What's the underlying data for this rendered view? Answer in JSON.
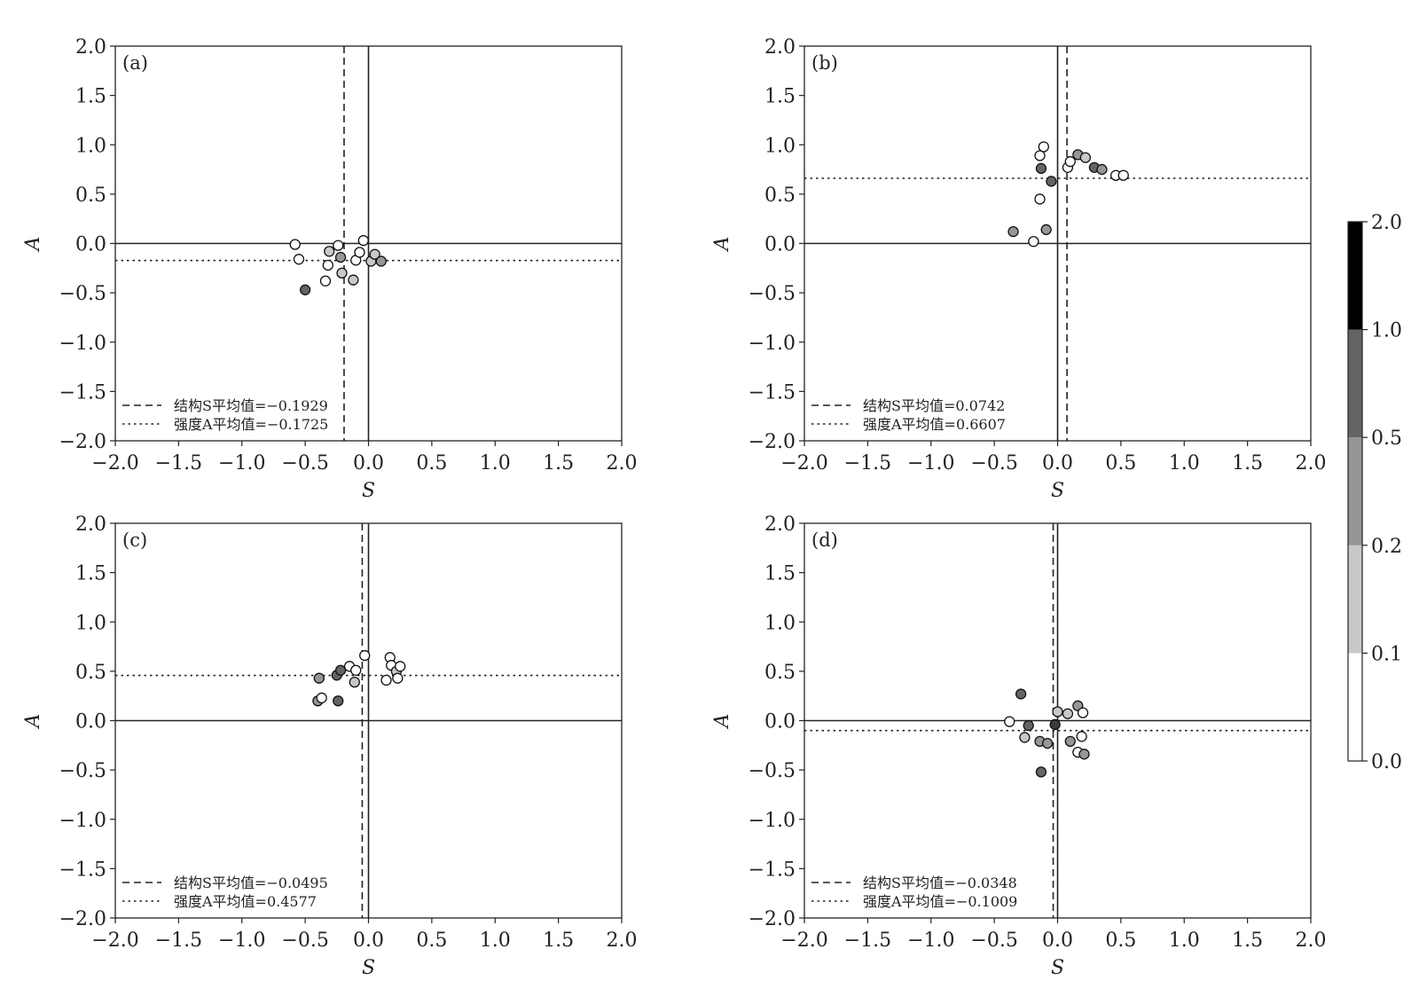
{
  "chart_data": [
    {
      "type": "scatter",
      "tag": "(a)",
      "xlabel": "S",
      "ylabel": "A",
      "xlim": [
        -2.0,
        2.0
      ],
      "ylim": [
        -2.0,
        2.0
      ],
      "xticks": [
        "−2.0",
        "−1.5",
        "−1.0",
        "−0.5",
        "0.0",
        "0.5",
        "1.0",
        "1.5",
        "2.0"
      ],
      "yticks": [
        "−2.0",
        "−1.5",
        "−1.0",
        "−0.5",
        "0.0",
        "0.5",
        "1.0",
        "1.5",
        "2.0"
      ],
      "mean_S": -0.1929,
      "mean_A": -0.1725,
      "legend": [
        "结构S平均值=−0.1929",
        "强度A平均值=−0.1725"
      ],
      "legend_position": "lower-left",
      "points": [
        {
          "s": -0.58,
          "a": -0.01,
          "v": 0.05
        },
        {
          "s": -0.55,
          "a": -0.16,
          "v": 0.05
        },
        {
          "s": -0.5,
          "a": -0.47,
          "v": 0.7
        },
        {
          "s": -0.34,
          "a": -0.38,
          "v": 0.05
        },
        {
          "s": -0.32,
          "a": -0.22,
          "v": 0.05
        },
        {
          "s": -0.31,
          "a": -0.08,
          "v": 0.15
        },
        {
          "s": -0.24,
          "a": -0.02,
          "v": 0.05
        },
        {
          "s": -0.22,
          "a": -0.14,
          "v": 0.4
        },
        {
          "s": -0.21,
          "a": -0.3,
          "v": 0.15
        },
        {
          "s": -0.12,
          "a": -0.37,
          "v": 0.15
        },
        {
          "s": -0.1,
          "a": -0.17,
          "v": 0.05
        },
        {
          "s": -0.07,
          "a": -0.09,
          "v": 0.05
        },
        {
          "s": -0.04,
          "a": 0.03,
          "v": 0.05
        },
        {
          "s": 0.02,
          "a": -0.18,
          "v": 0.15
        },
        {
          "s": 0.05,
          "a": -0.11,
          "v": 0.15
        },
        {
          "s": 0.1,
          "a": -0.18,
          "v": 0.4
        }
      ]
    },
    {
      "type": "scatter",
      "tag": "(b)",
      "xlabel": "S",
      "ylabel": "A",
      "xlim": [
        -2.0,
        2.0
      ],
      "ylim": [
        -2.0,
        2.0
      ],
      "xticks": [
        "−2.0",
        "−1.5",
        "−1.0",
        "−0.5",
        "0.0",
        "0.5",
        "1.0",
        "1.5",
        "2.0"
      ],
      "yticks": [
        "−2.0",
        "−1.5",
        "−1.0",
        "−0.5",
        "0.0",
        "0.5",
        "1.0",
        "1.5",
        "2.0"
      ],
      "mean_S": 0.0742,
      "mean_A": 0.6607,
      "legend": [
        "结构S平均值=0.0742",
        "强度A平均值=0.6607"
      ],
      "legend_position": "lower-left",
      "points": [
        {
          "s": -0.35,
          "a": 0.12,
          "v": 0.4
        },
        {
          "s": -0.19,
          "a": 0.02,
          "v": 0.05
        },
        {
          "s": -0.14,
          "a": 0.89,
          "v": 0.05
        },
        {
          "s": -0.14,
          "a": 0.45,
          "v": 0.05
        },
        {
          "s": -0.13,
          "a": 0.76,
          "v": 0.7
        },
        {
          "s": -0.11,
          "a": 0.98,
          "v": 0.05
        },
        {
          "s": -0.09,
          "a": 0.14,
          "v": 0.4
        },
        {
          "s": -0.05,
          "a": 0.63,
          "v": 0.7
        },
        {
          "s": 0.08,
          "a": 0.77,
          "v": 0.05
        },
        {
          "s": 0.1,
          "a": 0.83,
          "v": 0.05
        },
        {
          "s": 0.16,
          "a": 0.9,
          "v": 0.4
        },
        {
          "s": 0.22,
          "a": 0.87,
          "v": 0.15
        },
        {
          "s": 0.29,
          "a": 0.77,
          "v": 0.7
        },
        {
          "s": 0.35,
          "a": 0.75,
          "v": 0.4
        },
        {
          "s": 0.46,
          "a": 0.69,
          "v": 0.05
        },
        {
          "s": 0.52,
          "a": 0.69,
          "v": 0.05
        }
      ]
    },
    {
      "type": "scatter",
      "tag": "(c)",
      "xlabel": "S",
      "ylabel": "A",
      "xlim": [
        -2.0,
        2.0
      ],
      "ylim": [
        -2.0,
        2.0
      ],
      "xticks": [
        "−2.0",
        "−1.5",
        "−1.0",
        "−0.5",
        "0.0",
        "0.5",
        "1.0",
        "1.5",
        "2.0"
      ],
      "yticks": [
        "−2.0",
        "−1.5",
        "−1.0",
        "−0.5",
        "0.0",
        "0.5",
        "1.0",
        "1.5",
        "2.0"
      ],
      "mean_S": -0.0495,
      "mean_A": 0.4577,
      "legend": [
        "结构S平均值=−0.0495",
        "强度A平均值=0.4577"
      ],
      "legend_position": "lower-left",
      "points": [
        {
          "s": -0.4,
          "a": 0.2,
          "v": 0.4
        },
        {
          "s": -0.39,
          "a": 0.43,
          "v": 0.4
        },
        {
          "s": -0.37,
          "a": 0.23,
          "v": 0.05
        },
        {
          "s": -0.25,
          "a": 0.46,
          "v": 0.7
        },
        {
          "s": -0.24,
          "a": 0.2,
          "v": 0.7
        },
        {
          "s": -0.22,
          "a": 0.51,
          "v": 0.7
        },
        {
          "s": -0.15,
          "a": 0.55,
          "v": 0.05
        },
        {
          "s": -0.11,
          "a": 0.39,
          "v": 0.15
        },
        {
          "s": -0.1,
          "a": 0.51,
          "v": 0.05
        },
        {
          "s": -0.03,
          "a": 0.66,
          "v": 0.05
        },
        {
          "s": 0.14,
          "a": 0.41,
          "v": 0.05
        },
        {
          "s": 0.17,
          "a": 0.64,
          "v": 0.05
        },
        {
          "s": 0.18,
          "a": 0.56,
          "v": 0.05
        },
        {
          "s": 0.22,
          "a": 0.5,
          "v": 0.15
        },
        {
          "s": 0.23,
          "a": 0.43,
          "v": 0.05
        },
        {
          "s": 0.25,
          "a": 0.55,
          "v": 0.05
        }
      ]
    },
    {
      "type": "scatter",
      "tag": "(d)",
      "xlabel": "S",
      "ylabel": "A",
      "xlim": [
        -2.0,
        2.0
      ],
      "ylim": [
        -2.0,
        2.0
      ],
      "xticks": [
        "−2.0",
        "−1.5",
        "−1.0",
        "−0.5",
        "0.0",
        "0.5",
        "1.0",
        "1.5",
        "2.0"
      ],
      "yticks": [
        "−2.0",
        "−1.5",
        "−1.0",
        "−0.5",
        "0.0",
        "0.5",
        "1.0",
        "1.5",
        "2.0"
      ],
      "mean_S": -0.0348,
      "mean_A": -0.1009,
      "legend": [
        "结构S平均值=−0.0348",
        "强度A平均值=−0.1009"
      ],
      "legend_position": "lower-left",
      "points": [
        {
          "s": -0.38,
          "a": -0.01,
          "v": 0.05
        },
        {
          "s": -0.29,
          "a": 0.27,
          "v": 0.7
        },
        {
          "s": -0.26,
          "a": -0.17,
          "v": 0.15
        },
        {
          "s": -0.23,
          "a": -0.05,
          "v": 0.7
        },
        {
          "s": -0.14,
          "a": -0.21,
          "v": 0.4
        },
        {
          "s": -0.13,
          "a": -0.52,
          "v": 0.7
        },
        {
          "s": -0.08,
          "a": -0.23,
          "v": 0.4
        },
        {
          "s": -0.02,
          "a": -0.04,
          "v": 1.5
        },
        {
          "s": 0.0,
          "a": 0.09,
          "v": 0.15
        },
        {
          "s": 0.08,
          "a": 0.07,
          "v": 0.15
        },
        {
          "s": 0.1,
          "a": -0.21,
          "v": 0.4
        },
        {
          "s": 0.16,
          "a": 0.15,
          "v": 0.4
        },
        {
          "s": 0.16,
          "a": -0.32,
          "v": 0.05
        },
        {
          "s": 0.19,
          "a": -0.16,
          "v": 0.05
        },
        {
          "s": 0.2,
          "a": 0.08,
          "v": 0.05
        },
        {
          "s": 0.21,
          "a": -0.34,
          "v": 0.4
        }
      ]
    }
  ],
  "colorbar": {
    "ticks": [
      "0.0",
      "0.1",
      "0.2",
      "0.5",
      "1.0",
      "2.0"
    ],
    "bounds": [
      0.0,
      0.1,
      0.2,
      0.5,
      1.0,
      2.0
    ],
    "colors": [
      "#ffffff",
      "#c8c8c8",
      "#969696",
      "#646464",
      "#3c3c3c",
      "#000000"
    ]
  }
}
